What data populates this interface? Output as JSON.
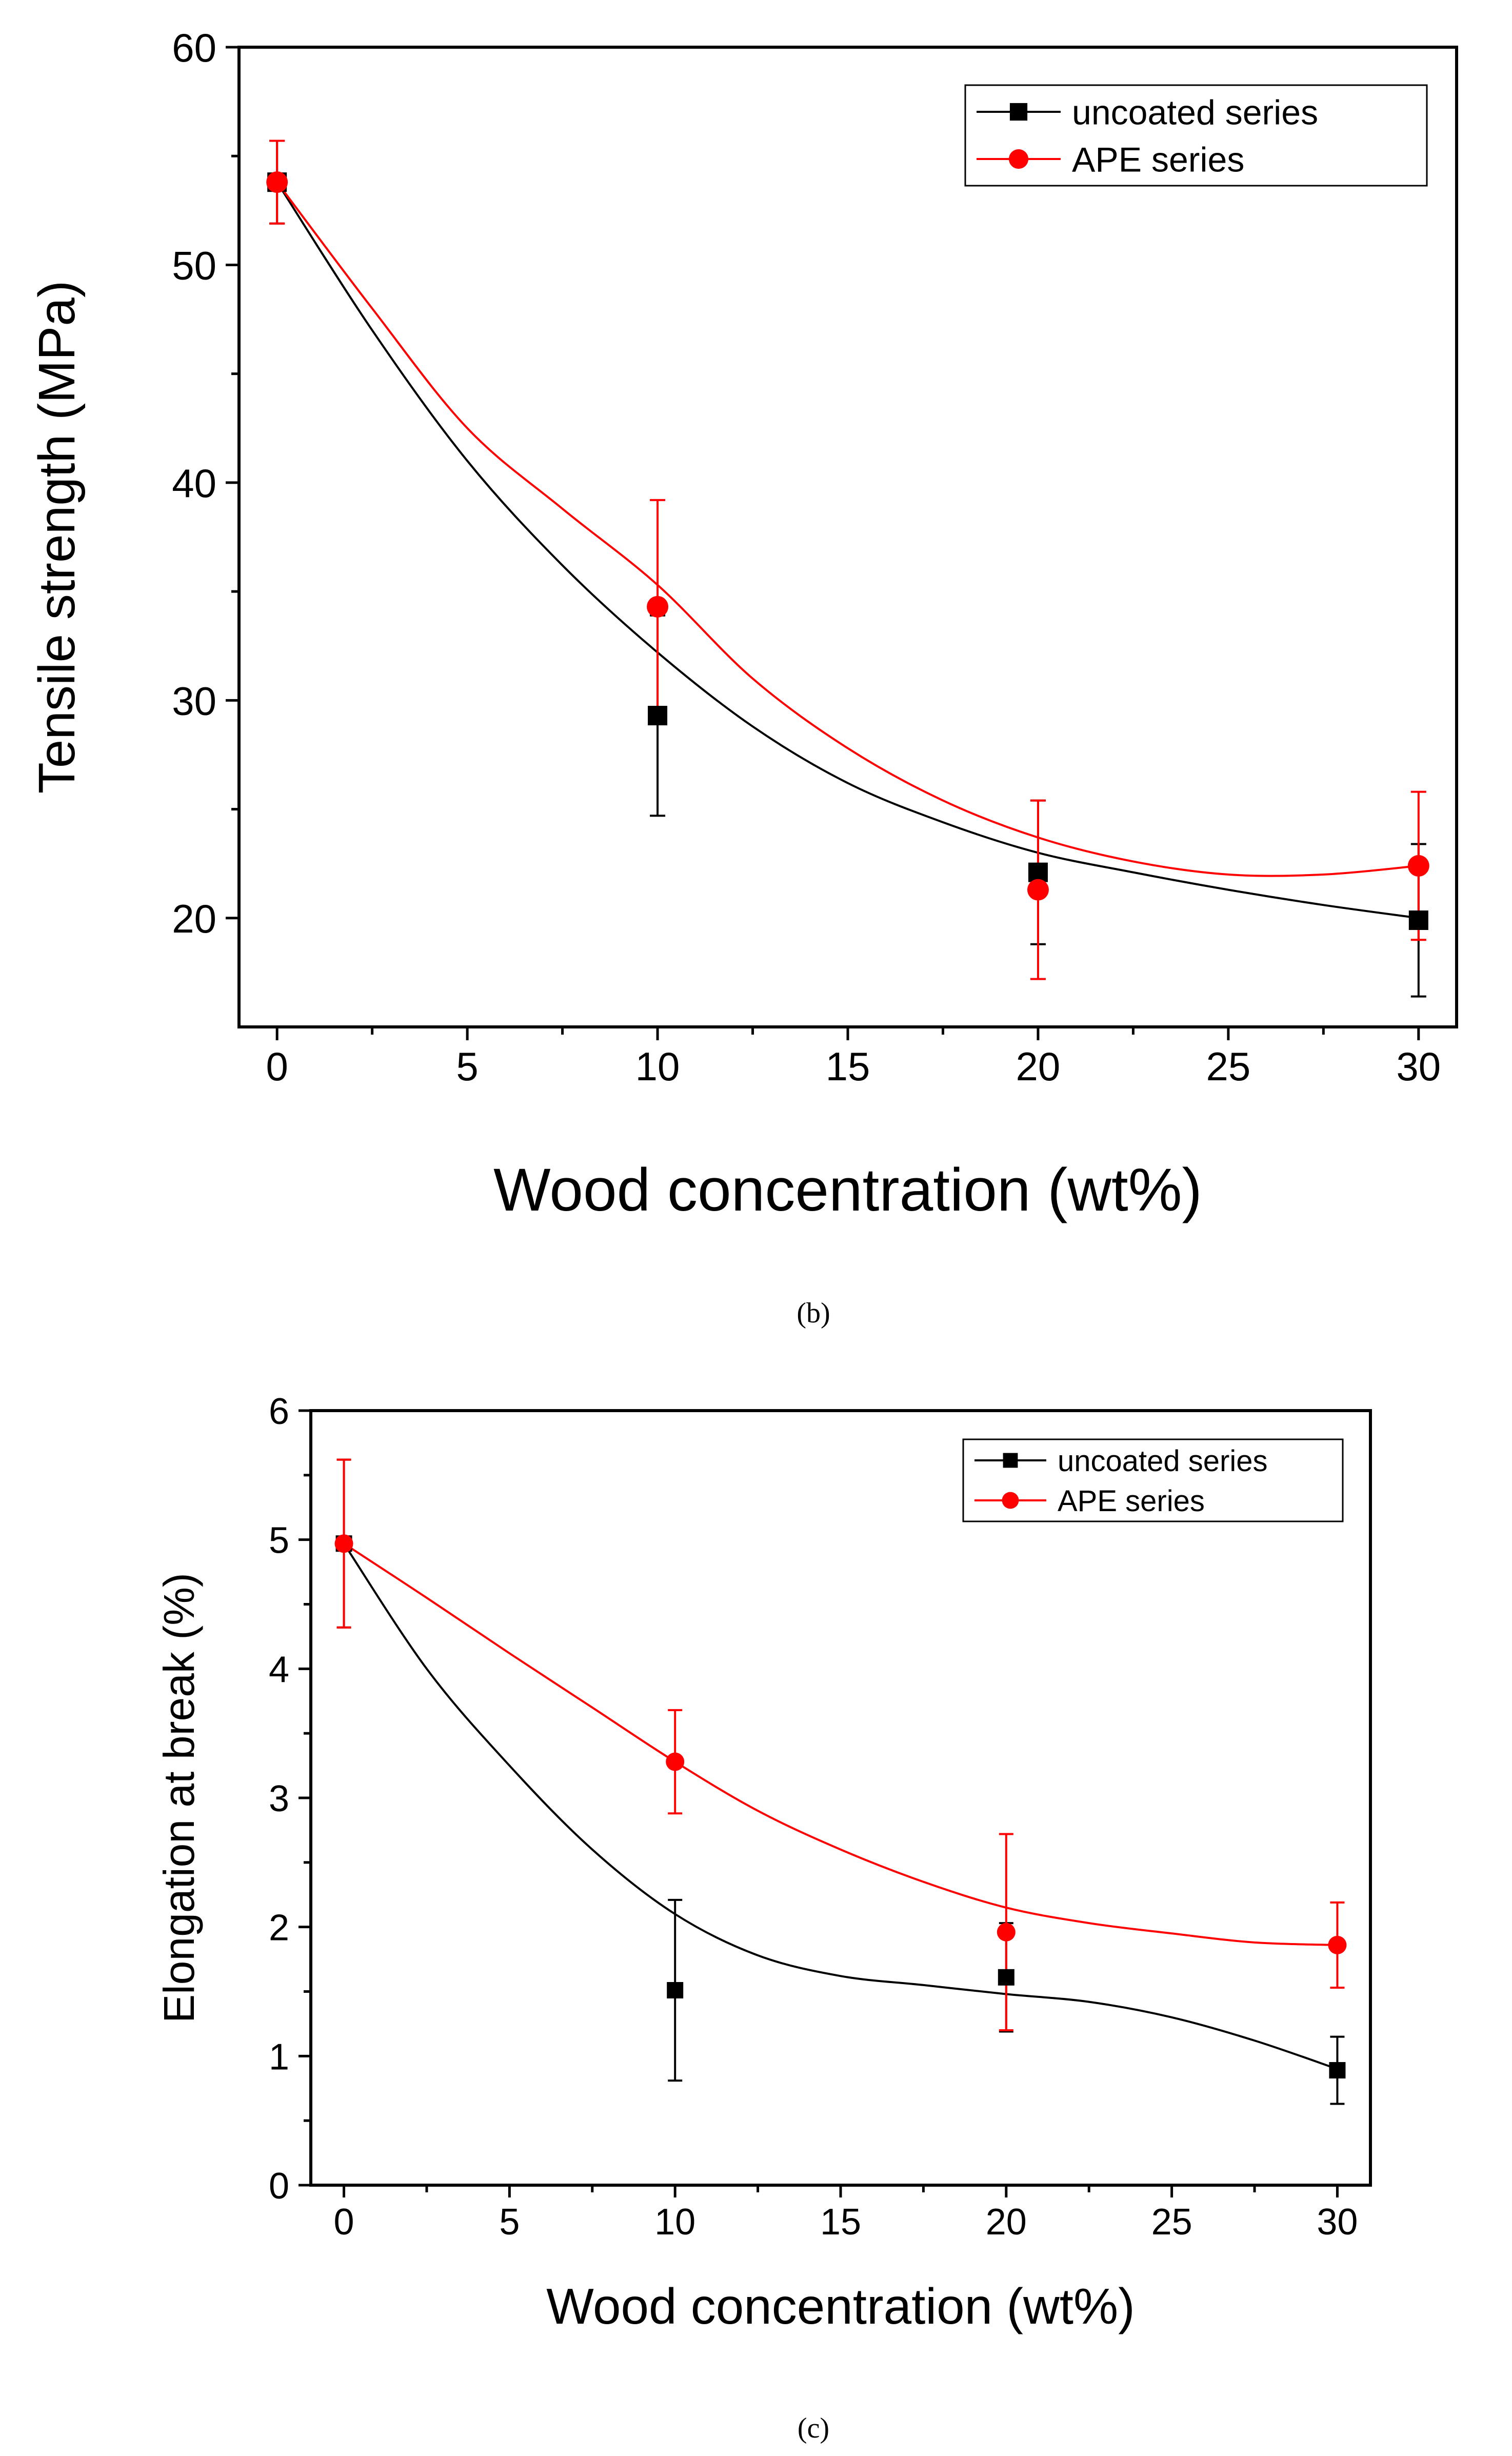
{
  "chart_data": [
    {
      "type": "scatter",
      "panel": "b",
      "caption": "(b)",
      "xlabel": "Wood concentration (wt%)",
      "ylabel": "Tensile strength (MPa)",
      "xlim": [
        -1,
        31
      ],
      "ylim": [
        15,
        60
      ],
      "x_ticks": [
        0,
        5,
        10,
        15,
        20,
        25,
        30
      ],
      "y_ticks": [
        20,
        30,
        40,
        50,
        60
      ],
      "legend_position": "top-right",
      "series": [
        {
          "name": "uncoated series",
          "color": "#000000",
          "marker": "square",
          "x": [
            0,
            10,
            20,
            30
          ],
          "values": [
            53.8,
            29.3,
            22.1,
            19.9
          ],
          "error": [
            [
              1.9,
              1.9
            ],
            [
              4.6,
              4.6
            ],
            [
              3.3,
              3.3
            ],
            [
              3.5,
              3.5
            ]
          ],
          "fit": [
            [
              0,
              53.8
            ],
            [
              2.5,
              47.0
            ],
            [
              5,
              41.0
            ],
            [
              7.5,
              36.2
            ],
            [
              10,
              32.2
            ],
            [
              12.5,
              28.8
            ],
            [
              15,
              26.2
            ],
            [
              17.5,
              24.4
            ],
            [
              20,
              23.0
            ],
            [
              22.5,
              22.1
            ],
            [
              25,
              21.3
            ],
            [
              27.5,
              20.6
            ],
            [
              30,
              20.0
            ]
          ]
        },
        {
          "name": "APE series",
          "color": "#ff0000",
          "marker": "circle",
          "x": [
            0,
            10,
            20,
            30
          ],
          "values": [
            53.8,
            34.3,
            21.3,
            22.4
          ],
          "error": [
            [
              1.9,
              1.9
            ],
            [
              4.9,
              4.9
            ],
            [
              4.1,
              4.1
            ],
            [
              3.4,
              3.4
            ]
          ],
          "fit": [
            [
              0,
              53.8
            ],
            [
              2.5,
              48.0
            ],
            [
              5,
              42.5
            ],
            [
              7.5,
              38.8
            ],
            [
              10,
              35.3
            ],
            [
              12.5,
              31.0
            ],
            [
              15,
              27.8
            ],
            [
              17.5,
              25.4
            ],
            [
              20,
              23.7
            ],
            [
              22.5,
              22.6
            ],
            [
              25,
              22.0
            ],
            [
              27.5,
              22.0
            ],
            [
              30,
              22.4
            ]
          ]
        }
      ]
    },
    {
      "type": "scatter",
      "panel": "c",
      "caption": "(c)",
      "xlabel": "Wood concentration (wt%)",
      "ylabel": "Elongation at break (%)",
      "xlim": [
        -1,
        31
      ],
      "ylim": [
        0,
        6
      ],
      "x_ticks": [
        0,
        5,
        10,
        15,
        20,
        25,
        30
      ],
      "y_ticks": [
        0,
        1,
        2,
        3,
        4,
        5,
        6
      ],
      "legend_position": "top-right",
      "series": [
        {
          "name": "uncoated series",
          "color": "#000000",
          "marker": "square",
          "x": [
            0,
            10,
            20,
            30
          ],
          "values": [
            4.97,
            1.51,
            1.61,
            0.89
          ],
          "error": [
            [
              0.65,
              0.65
            ],
            [
              0.7,
              0.7
            ],
            [
              0.42,
              0.42
            ],
            [
              0.26,
              0.26
            ]
          ],
          "fit": [
            [
              0,
              4.97
            ],
            [
              2.5,
              4.0
            ],
            [
              5,
              3.25
            ],
            [
              7.5,
              2.6
            ],
            [
              10,
              2.1
            ],
            [
              12.5,
              1.78
            ],
            [
              15,
              1.62
            ],
            [
              17.5,
              1.55
            ],
            [
              20,
              1.48
            ],
            [
              22.5,
              1.42
            ],
            [
              25,
              1.3
            ],
            [
              27.5,
              1.12
            ],
            [
              30,
              0.9
            ]
          ]
        },
        {
          "name": "APE series",
          "color": "#ff0000",
          "marker": "circle",
          "x": [
            0,
            10,
            20,
            30
          ],
          "values": [
            4.97,
            3.28,
            1.96,
            1.86
          ],
          "error": [
            [
              0.65,
              0.65
            ],
            [
              0.4,
              0.4
            ],
            [
              0.76,
              0.76
            ],
            [
              0.33,
              0.33
            ]
          ],
          "fit": [
            [
              0,
              4.97
            ],
            [
              2.5,
              4.55
            ],
            [
              5,
              4.12
            ],
            [
              7.5,
              3.7
            ],
            [
              10,
              3.28
            ],
            [
              12.5,
              2.9
            ],
            [
              15,
              2.6
            ],
            [
              17.5,
              2.35
            ],
            [
              20,
              2.15
            ],
            [
              22.5,
              2.03
            ],
            [
              25,
              1.95
            ],
            [
              27.5,
              1.88
            ],
            [
              30,
              1.86
            ]
          ]
        }
      ]
    }
  ]
}
